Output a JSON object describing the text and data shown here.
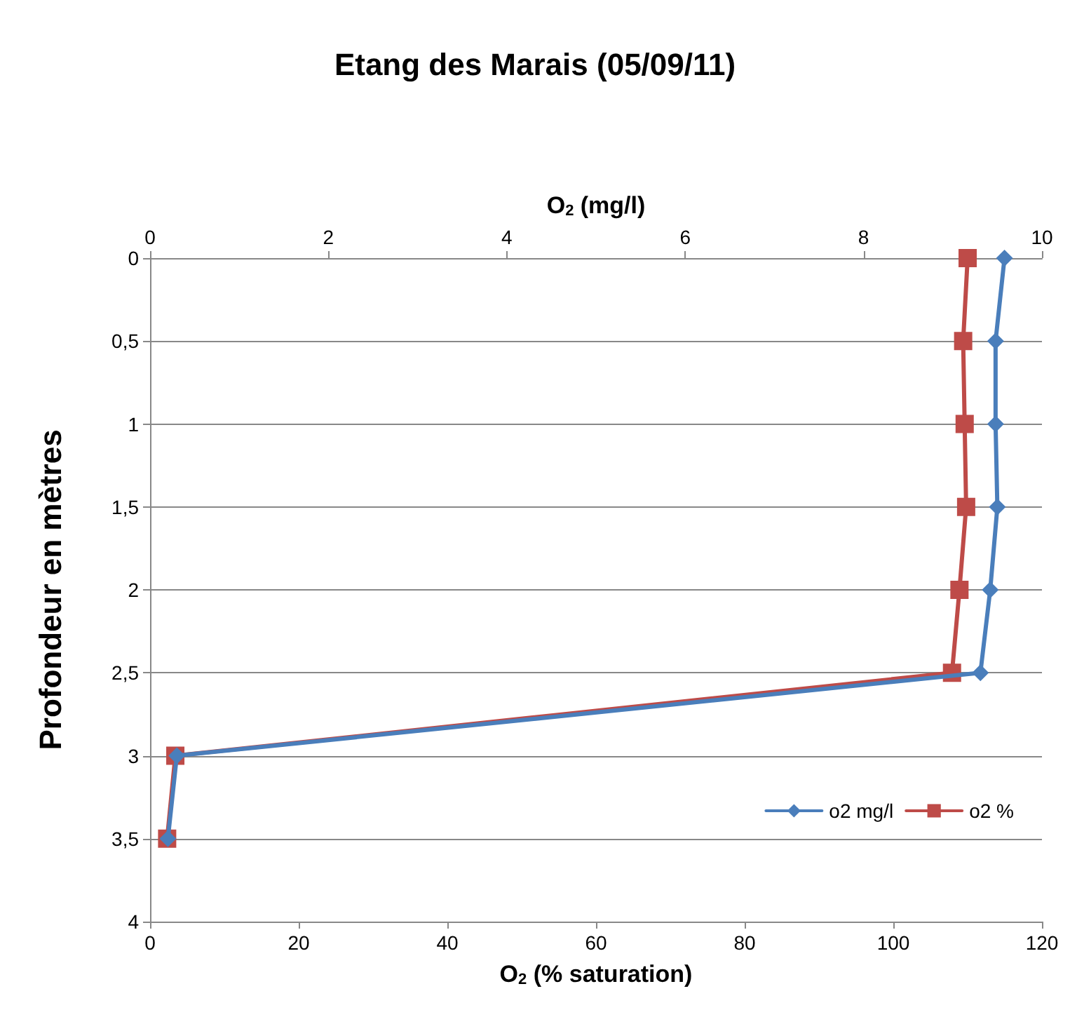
{
  "chart_data": {
    "type": "line",
    "title": "Etang des Marais (05/09/11)",
    "xlabel": "O$_{2}$ (% saturation)",
    "x2label": "O$_{2}$ (mg/l)",
    "ylabel": "Profondeur en mètres",
    "series": [
      {
        "name": "o2 mg/l",
        "color": "#4a7ebb",
        "marker": "diamond",
        "axis": "x2",
        "x": [
          9.58,
          9.48,
          9.48,
          9.5,
          9.42,
          9.31,
          0.3,
          0.2
        ],
        "values": [
          0,
          0.5,
          1,
          1.5,
          2,
          2.5,
          3,
          3.5
        ]
      },
      {
        "name": "o2 %",
        "color": "#be4b48",
        "marker": "square",
        "x": [
          110,
          109.4,
          109.6,
          109.8,
          108.9,
          107.9,
          3.4,
          2.3
        ],
        "values": [
          0,
          0.5,
          1,
          1.5,
          2,
          2.5,
          3,
          3.5
        ]
      }
    ],
    "xlim": [
      0,
      120
    ],
    "xticks": [
      0,
      20,
      40,
      60,
      80,
      100,
      120
    ],
    "x2lim": [
      0,
      10
    ],
    "x2ticks": [
      0,
      2,
      4,
      6,
      8,
      10
    ],
    "ylim": [
      4,
      0
    ],
    "yticks": [
      {
        "value": 0,
        "label": "0"
      },
      {
        "value": 0.5,
        "label": "0,5"
      },
      {
        "value": 1,
        "label": "1"
      },
      {
        "value": 1.5,
        "label": "1,5"
      },
      {
        "value": 2,
        "label": "2"
      },
      {
        "value": 2.5,
        "label": "2,5"
      },
      {
        "value": 3,
        "label": "3"
      },
      {
        "value": 3.5,
        "label": "3,5"
      },
      {
        "value": 4,
        "label": "4"
      }
    ],
    "grid": "y",
    "legend": "bottom right"
  }
}
